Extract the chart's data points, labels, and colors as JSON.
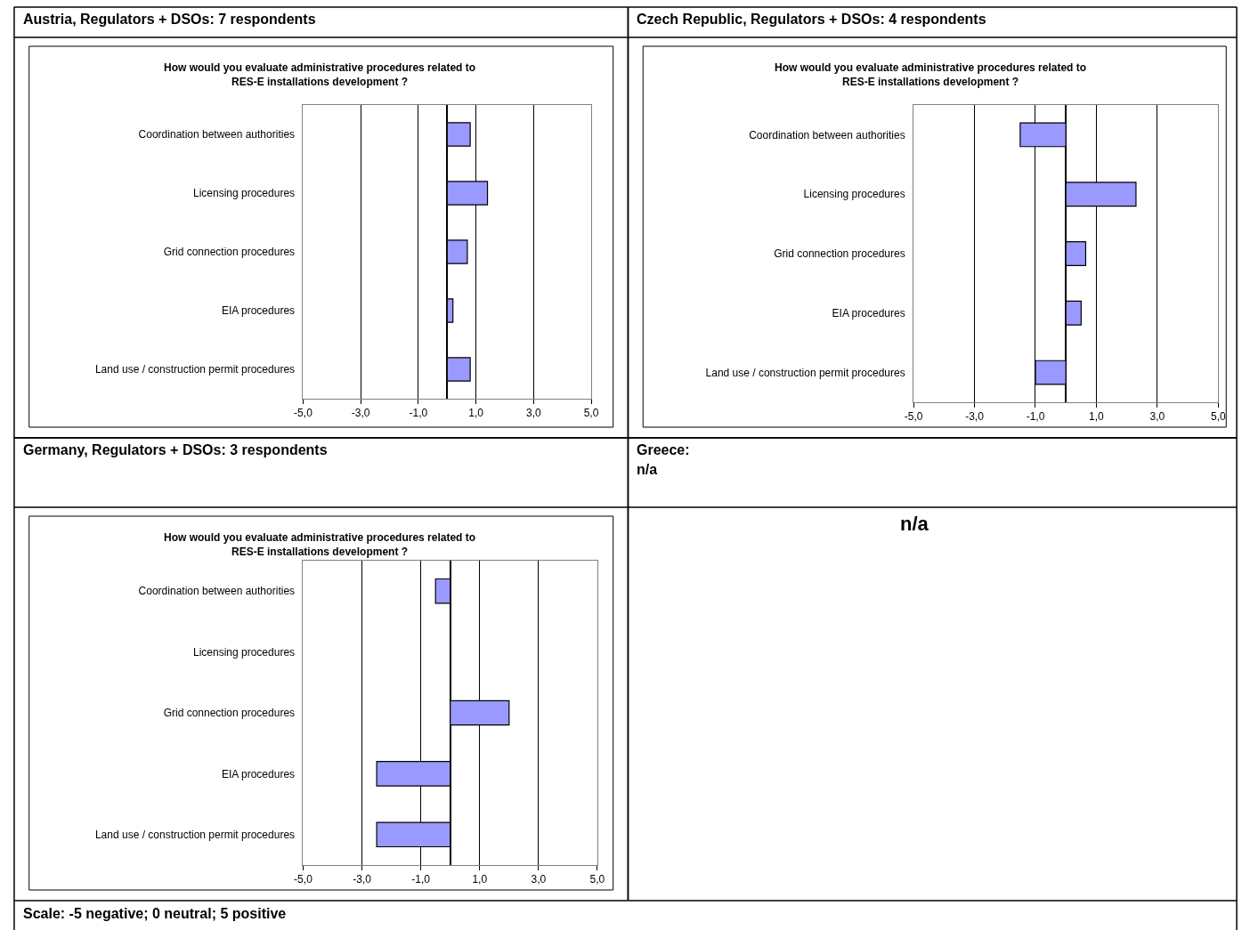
{
  "chart_data": [
    {
      "type": "bar",
      "orientation": "horizontal",
      "title": "Austria, Regulators + DSOs: 7 respondents",
      "subtitle": "How would you evaluate administrative procedures related to\nRES-E installations development ?",
      "categories": [
        "Coordination between authorities",
        "Licensing procedures",
        "Grid connection procedures",
        "EIA procedures",
        "Land use / construction permit procedures"
      ],
      "values": [
        0.8,
        1.4,
        0.7,
        0.2,
        0.8
      ],
      "color": "#9999ff",
      "xlim": [
        -5,
        5
      ],
      "xticks": [
        {
          "value": -5,
          "label": "-5,0"
        },
        {
          "value": -3,
          "label": "-3,0"
        },
        {
          "value": -1,
          "label": "-1,0"
        },
        {
          "value": 1,
          "label": "1,0"
        },
        {
          "value": 3,
          "label": "3,0"
        },
        {
          "value": 5,
          "label": "5,0"
        }
      ],
      "grid": "x"
    },
    {
      "type": "bar",
      "orientation": "horizontal",
      "title": "Czech Republic, Regulators + DSOs: 4 respondents",
      "subtitle": "How would you evaluate administrative procedures related to\nRES-E installations development ?",
      "categories": [
        "Coordination between authorities",
        "Licensing procedures",
        "Grid connection procedures",
        "EIA procedures",
        "Land use / construction permit procedures"
      ],
      "values": [
        -1.5,
        2.3,
        0.65,
        0.5,
        -1.0
      ],
      "color": "#9999ff",
      "xlim": [
        -5,
        5
      ],
      "xticks": [
        {
          "value": -5,
          "label": "-5,0"
        },
        {
          "value": -3,
          "label": "-3,0"
        },
        {
          "value": -1,
          "label": "-1,0"
        },
        {
          "value": 1,
          "label": "1,0"
        },
        {
          "value": 3,
          "label": "3,0"
        },
        {
          "value": 5,
          "label": "5,0"
        }
      ],
      "grid": "x"
    },
    {
      "type": "bar",
      "orientation": "horizontal",
      "title": "Germany, Regulators + DSOs: 3 respondents",
      "subtitle": "How would you evaluate administrative procedures related to\nRES-E installations development ?",
      "categories": [
        "Coordination between authorities",
        "Licensing procedures",
        "Grid connection procedures",
        "EIA procedures",
        "Land use / construction permit procedures"
      ],
      "values": [
        -0.5,
        null,
        2.0,
        -2.5,
        -2.5
      ],
      "color": "#9999ff",
      "xlim": [
        -5,
        5
      ],
      "xticks": [
        {
          "value": -5,
          "label": "-5,0"
        },
        {
          "value": -3,
          "label": "-3,0"
        },
        {
          "value": -1,
          "label": "-1,0"
        },
        {
          "value": 1,
          "label": "1,0"
        },
        {
          "value": 3,
          "label": "3,0"
        },
        {
          "value": 5,
          "label": "5,0"
        }
      ],
      "grid": "x"
    },
    {
      "type": "other",
      "title": "Greece:",
      "subtitle": "n/a",
      "annotations": [
        "n/a",
        "Scale: -5 negative; 0 neutral; 5 positive"
      ]
    }
  ]
}
